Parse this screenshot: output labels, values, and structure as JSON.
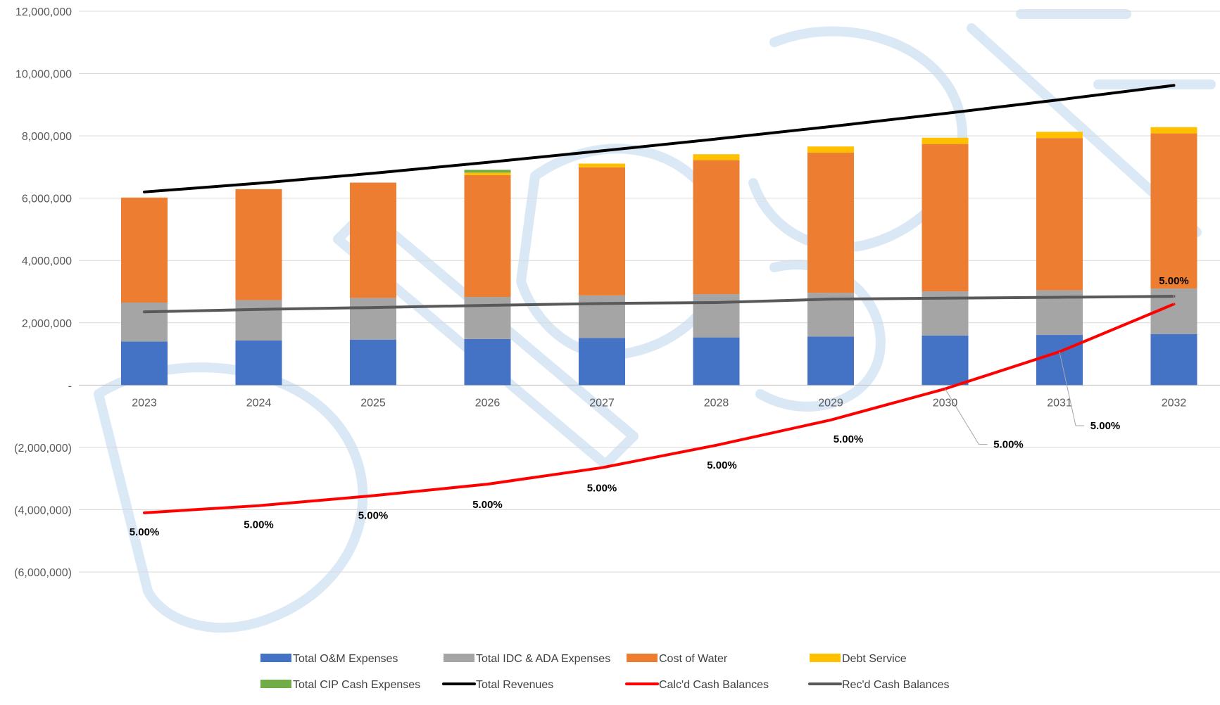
{
  "chart_data": {
    "type": "bar",
    "stacked": true,
    "categories": [
      "2023",
      "2024",
      "2025",
      "2026",
      "2027",
      "2028",
      "2029",
      "2030",
      "2031",
      "2032"
    ],
    "ylim": [
      -6000000,
      12000000
    ],
    "y_ticks": [
      {
        "value": 12000000,
        "label": "12,000,000"
      },
      {
        "value": 10000000,
        "label": "10,000,000"
      },
      {
        "value": 8000000,
        "label": "8,000,000"
      },
      {
        "value": 6000000,
        "label": "6,000,000"
      },
      {
        "value": 4000000,
        "label": "4,000,000"
      },
      {
        "value": 2000000,
        "label": "2,000,000"
      },
      {
        "value": 0,
        "label": "-"
      },
      {
        "value": -2000000,
        "label": "(2,000,000)"
      },
      {
        "value": -4000000,
        "label": "(4,000,000)"
      },
      {
        "value": -6000000,
        "label": "(6,000,000)"
      }
    ],
    "grid": true,
    "legend_position": "bottom",
    "bar_series": [
      {
        "name": "Total O&M Expenses",
        "color": "#4472C4",
        "values": [
          1400000,
          1430000,
          1460000,
          1480000,
          1510000,
          1530000,
          1560000,
          1590000,
          1610000,
          1640000
        ]
      },
      {
        "name": "Total IDC & ADA Expenses",
        "color": "#A5A5A5",
        "values": [
          1250000,
          1300000,
          1340000,
          1350000,
          1370000,
          1390000,
          1400000,
          1420000,
          1430000,
          1460000
        ]
      },
      {
        "name": "Cost of Water",
        "color": "#ED7D31",
        "values": [
          3370000,
          3560000,
          3700000,
          3910000,
          4110000,
          4300000,
          4500000,
          4730000,
          4890000,
          4980000
        ]
      },
      {
        "name": "Debt Service",
        "color": "#FFC000",
        "values": [
          0,
          0,
          0,
          80000,
          120000,
          190000,
          200000,
          200000,
          200000,
          200000
        ]
      },
      {
        "name": "Total CIP Cash Expenses",
        "color": "#70AD47",
        "values": [
          0,
          0,
          0,
          90000,
          0,
          0,
          0,
          0,
          0,
          0
        ]
      }
    ],
    "line_series": [
      {
        "name": "Total Revenues",
        "color": "#000000",
        "values": [
          6200000,
          6480000,
          6800000,
          7150000,
          7520000,
          7900000,
          8300000,
          8720000,
          9160000,
          9620000
        ]
      },
      {
        "name": "Calc'd Cash Balances",
        "color": "#FF0000",
        "values": [
          -4100000,
          -3870000,
          -3550000,
          -3180000,
          -2650000,
          -1930000,
          -1120000,
          -120000,
          1070000,
          2600000
        ]
      },
      {
        "name": "Rec'd Cash Balances",
        "color": "#595959",
        "values": [
          2350000,
          2430000,
          2490000,
          2560000,
          2620000,
          2650000,
          2760000,
          2790000,
          2820000,
          2850000
        ]
      }
    ],
    "data_labels": {
      "series": "Calc'd Cash Balances",
      "labels": [
        "5.00%",
        "5.00%",
        "5.00%",
        "5.00%",
        "5.00%",
        "5.00%",
        "5.00%",
        "5.00%",
        "5.00%",
        "5.00%"
      ]
    },
    "legend": [
      {
        "name": "Total O&M Expenses",
        "kind": "bar",
        "color": "#4472C4"
      },
      {
        "name": "Total IDC & ADA Expenses",
        "kind": "bar",
        "color": "#A5A5A5"
      },
      {
        "name": "Cost of Water",
        "kind": "bar",
        "color": "#ED7D31"
      },
      {
        "name": "Debt Service",
        "kind": "bar",
        "color": "#FFC000"
      },
      {
        "name": "Total CIP Cash Expenses",
        "kind": "bar",
        "color": "#70AD47"
      },
      {
        "name": "Total Revenues",
        "kind": "line",
        "color": "#000000"
      },
      {
        "name": "Calc'd Cash Balances",
        "kind": "line",
        "color": "#FF0000"
      },
      {
        "name": "Rec'd Cash Balances",
        "kind": "line",
        "color": "#595959"
      }
    ]
  }
}
